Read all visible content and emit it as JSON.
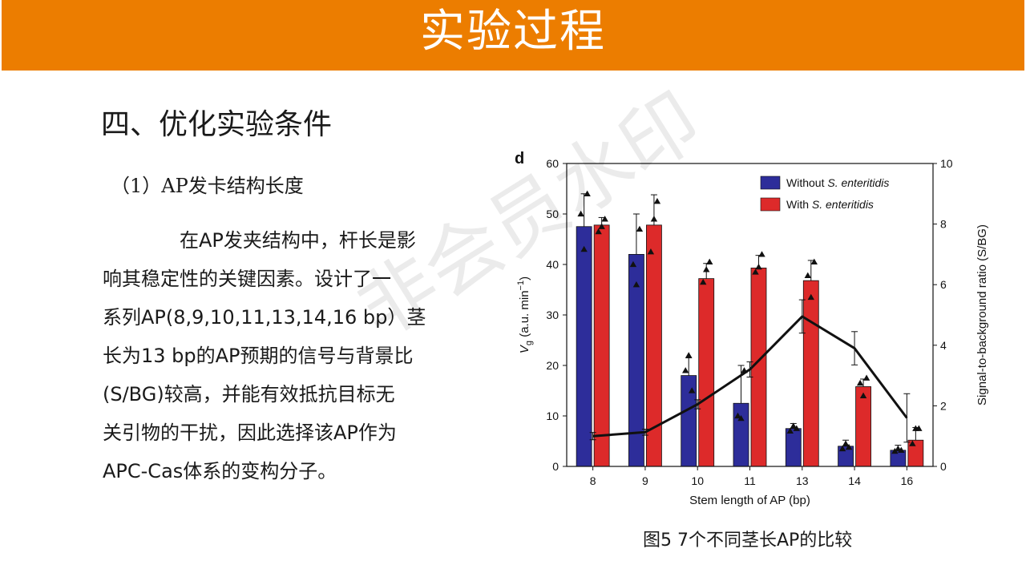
{
  "header": {
    "title": "实验过程"
  },
  "section": {
    "title": "四、优化实验条件"
  },
  "subsection": {
    "title": "（1）AP发卡结构长度"
  },
  "body": {
    "line1": "在AP发夹结构中，杆长是影",
    "line2": "响其稳定性的关键因素。设计了一",
    "line3": "系列AP(8,9,10,11,13,14,16 bp）茎",
    "line4": "长为13 bp的AP预期的信号与背景比",
    "line5": "(S/BG)较高，并能有效抵抗目标无",
    "line6": "关引物的干扰，因此选择该AP作为",
    "line7": "APC-Cas体系的变构分子。"
  },
  "watermark": {
    "text": "非会员水印"
  },
  "figure": {
    "caption": "图5 7个不同茎长AP的比较"
  },
  "chart_data": {
    "type": "bar",
    "panel_label": "d",
    "categories": [
      "8",
      "9",
      "10",
      "11",
      "13",
      "14",
      "16"
    ],
    "xlabel": "Stem length of AP (bp)",
    "ylabel_main": "V",
    "ylabel_sub": "g",
    "ylabel_rest": " (a.u. min",
    "ylabel_sup": "−1",
    "ylabel_end": ")",
    "y2label": "Signal-to-background ratio (S/BG)",
    "ylim": [
      0,
      60
    ],
    "yticks": [
      0,
      10,
      20,
      30,
      40,
      50,
      60
    ],
    "y2lim": [
      0,
      10
    ],
    "y2ticks": [
      0,
      2,
      4,
      6,
      8,
      10
    ],
    "legend": [
      {
        "label_pre": "Without ",
        "label_em": "S. enteritidis"
      },
      {
        "label_pre": "With ",
        "label_em": "S. enteritidis"
      }
    ],
    "series": [
      {
        "color": "#2d2d9a",
        "values": [
          47.5,
          42,
          18,
          12.5,
          7.5,
          4,
          3.2
        ],
        "errors": [
          6.5,
          8,
          3.5,
          7.5,
          1.0,
          1.2,
          1.0
        ],
        "points": [
          [
            50,
            43,
            54
          ],
          [
            40,
            36,
            47
          ],
          [
            19,
            22,
            15
          ],
          [
            10,
            9.5,
            19
          ],
          [
            7,
            8,
            7.5
          ],
          [
            3.5,
            4.5,
            3.8
          ],
          [
            3,
            3.5,
            3.2
          ]
        ]
      },
      {
        "color": "#dd2a2a",
        "values": [
          47.8,
          47.8,
          37.2,
          39.3,
          36.8,
          15.8,
          5.2
        ],
        "errors": [
          1.5,
          6,
          3,
          2.5,
          4,
          1.5,
          2.5
        ],
        "points": [
          [
            46.5,
            47.5,
            49
          ],
          [
            42.5,
            49,
            52.5
          ],
          [
            36.5,
            39,
            40.5
          ],
          [
            38.5,
            39.5,
            42
          ],
          [
            37.8,
            33.5,
            40.5
          ],
          [
            16.5,
            14,
            17.5
          ],
          [
            4.5,
            7.5,
            7.5
          ]
        ]
      }
    ],
    "ratio": {
      "values": [
        1.0,
        1.13,
        2.05,
        3.2,
        4.95,
        3.9,
        1.6
      ],
      "errors": [
        0.12,
        0.1,
        0.15,
        0.25,
        0.55,
        0.55,
        0.8
      ]
    }
  }
}
